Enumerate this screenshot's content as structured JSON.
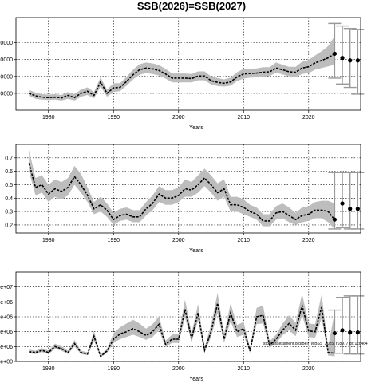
{
  "title": "SSB(2026)=SSB(2027)",
  "footnote": "stockassessment.org/Bell_WBSS_2025, r18977 git:1cc464",
  "colors": {
    "band": "#bdbdbd",
    "line": "#000000",
    "whisker": "#999999",
    "grid": "#000000"
  },
  "chart_data": [
    {
      "type": "line",
      "xlabel": "Years",
      "ylabel": "",
      "xlim": [
        1975,
        2028
      ],
      "ylim": [
        0,
        1100000
      ],
      "xticks": [
        1980,
        1990,
        2000,
        2010,
        2020
      ],
      "yticks": [
        {
          "value": 200000,
          "label": "0000"
        },
        {
          "value": 400000,
          "label": "0000"
        },
        {
          "value": 600000,
          "label": "0000"
        },
        {
          "value": 800000,
          "label": "0000"
        }
      ],
      "grid": true,
      "x": [
        1977,
        1978,
        1979,
        1980,
        1981,
        1982,
        1983,
        1984,
        1985,
        1986,
        1987,
        1988,
        1989,
        1990,
        1991,
        1992,
        1993,
        1994,
        1995,
        1996,
        1997,
        1998,
        1999,
        2000,
        2001,
        2002,
        2003,
        2004,
        2005,
        2006,
        2007,
        2008,
        2009,
        2010,
        2011,
        2012,
        2013,
        2014,
        2015,
        2016,
        2017,
        2018,
        2019,
        2020,
        2021,
        2022,
        2023,
        2024
      ],
      "estimate": [
        200000,
        170000,
        155000,
        150000,
        155000,
        145000,
        175000,
        150000,
        200000,
        225000,
        175000,
        335000,
        200000,
        265000,
        270000,
        340000,
        420000,
        480000,
        500000,
        490000,
        470000,
        430000,
        380000,
        380000,
        380000,
        375000,
        405000,
        405000,
        350000,
        330000,
        320000,
        335000,
        395000,
        430000,
        435000,
        440000,
        450000,
        455000,
        500000,
        480000,
        455000,
        450000,
        500000,
        515000,
        560000,
        590000,
        620000,
        670000
      ],
      "lower": [
        170000,
        135000,
        125000,
        120000,
        125000,
        115000,
        135000,
        115000,
        160000,
        180000,
        140000,
        280000,
        160000,
        215000,
        225000,
        290000,
        365000,
        420000,
        440000,
        430000,
        410000,
        375000,
        330000,
        330000,
        330000,
        330000,
        355000,
        355000,
        305000,
        285000,
        280000,
        290000,
        345000,
        375000,
        385000,
        390000,
        395000,
        405000,
        445000,
        425000,
        400000,
        390000,
        430000,
        440000,
        480000,
        500000,
        520000,
        540000
      ],
      "upper": [
        240000,
        210000,
        190000,
        185000,
        190000,
        180000,
        215000,
        190000,
        245000,
        270000,
        215000,
        390000,
        245000,
        320000,
        320000,
        395000,
        480000,
        545000,
        565000,
        555000,
        535000,
        490000,
        435000,
        435000,
        435000,
        430000,
        460000,
        460000,
        400000,
        380000,
        365000,
        385000,
        450000,
        490000,
        490000,
        495000,
        510000,
        510000,
        565000,
        540000,
        515000,
        515000,
        575000,
        595000,
        650000,
        700000,
        760000,
        880000
      ],
      "forecast": [
        {
          "x": 2024,
          "mid": 670000,
          "lo": 380000,
          "hi": 1030000
        },
        {
          "x": 2025,
          "mid": 620000,
          "lo": 310000,
          "hi": 1000000
        },
        {
          "x": 2026,
          "mid": 590000,
          "lo": 270000,
          "hi": 970000
        },
        {
          "x": 2027,
          "mid": 590000,
          "lo": 190000,
          "hi": 960000
        }
      ]
    },
    {
      "type": "line",
      "xlabel": "Years",
      "ylabel": "",
      "xlim": [
        1975,
        2028
      ],
      "ylim": [
        0.14,
        0.8
      ],
      "xticks": [
        1980,
        1990,
        2000,
        2010,
        2020
      ],
      "yticks": [
        {
          "value": 0.2,
          "label": "0.2"
        },
        {
          "value": 0.3,
          "label": "0.3"
        },
        {
          "value": 0.4,
          "label": "0.4"
        },
        {
          "value": 0.5,
          "label": "0.5"
        },
        {
          "value": 0.6,
          "label": "0.6"
        },
        {
          "value": 0.7,
          "label": "0.7"
        }
      ],
      "grid": true,
      "x": [
        1977,
        1978,
        1979,
        1980,
        1981,
        1982,
        1983,
        1984,
        1985,
        1986,
        1987,
        1988,
        1989,
        1990,
        1991,
        1992,
        1993,
        1994,
        1995,
        1996,
        1997,
        1998,
        1999,
        2000,
        2001,
        2002,
        2003,
        2004,
        2005,
        2006,
        2007,
        2008,
        2009,
        2010,
        2011,
        2012,
        2013,
        2014,
        2015,
        2016,
        2017,
        2018,
        2019,
        2020,
        2021,
        2022,
        2023,
        2024
      ],
      "estimate": [
        0.66,
        0.48,
        0.5,
        0.43,
        0.47,
        0.45,
        0.48,
        0.56,
        0.5,
        0.42,
        0.32,
        0.35,
        0.31,
        0.24,
        0.27,
        0.28,
        0.26,
        0.26,
        0.32,
        0.36,
        0.43,
        0.4,
        0.4,
        0.42,
        0.47,
        0.46,
        0.5,
        0.55,
        0.5,
        0.44,
        0.47,
        0.35,
        0.35,
        0.33,
        0.3,
        0.28,
        0.23,
        0.23,
        0.29,
        0.3,
        0.27,
        0.24,
        0.27,
        0.28,
        0.31,
        0.31,
        0.3,
        0.24
      ],
      "lower": [
        0.6,
        0.42,
        0.44,
        0.37,
        0.41,
        0.39,
        0.42,
        0.5,
        0.44,
        0.37,
        0.28,
        0.3,
        0.26,
        0.2,
        0.23,
        0.24,
        0.22,
        0.22,
        0.27,
        0.31,
        0.37,
        0.35,
        0.35,
        0.37,
        0.41,
        0.41,
        0.44,
        0.49,
        0.44,
        0.38,
        0.41,
        0.3,
        0.3,
        0.28,
        0.26,
        0.24,
        0.19,
        0.19,
        0.24,
        0.25,
        0.22,
        0.2,
        0.22,
        0.23,
        0.25,
        0.25,
        0.22,
        0.17
      ],
      "upper": [
        0.76,
        0.55,
        0.57,
        0.5,
        0.54,
        0.52,
        0.55,
        0.64,
        0.58,
        0.48,
        0.37,
        0.41,
        0.36,
        0.29,
        0.32,
        0.33,
        0.31,
        0.31,
        0.37,
        0.42,
        0.49,
        0.46,
        0.46,
        0.48,
        0.54,
        0.52,
        0.57,
        0.62,
        0.57,
        0.51,
        0.54,
        0.41,
        0.41,
        0.39,
        0.35,
        0.33,
        0.28,
        0.28,
        0.34,
        0.36,
        0.33,
        0.29,
        0.33,
        0.34,
        0.37,
        0.38,
        0.38,
        0.36
      ],
      "forecast": [
        {
          "x": 2024,
          "mid": 0.24,
          "lo": 0.17,
          "hi": 0.59
        },
        {
          "x": 2025,
          "mid": 0.36,
          "lo": 0.18,
          "hi": 0.59
        },
        {
          "x": 2026,
          "mid": 0.32,
          "lo": 0.17,
          "hi": 0.59
        },
        {
          "x": 2027,
          "mid": 0.32,
          "lo": 0.17,
          "hi": 0.59
        }
      ]
    },
    {
      "type": "line",
      "xlabel": "Years",
      "ylabel": "",
      "xlim": [
        1975,
        2028
      ],
      "ylim": [
        0,
        12000000
      ],
      "xticks": [
        1980,
        1990,
        2000,
        2010,
        2020
      ],
      "yticks": [
        {
          "value": 0,
          "label": "e+00"
        },
        {
          "value": 2000000,
          "label": "e+06"
        },
        {
          "value": 4000000,
          "label": "e+06"
        },
        {
          "value": 6000000,
          "label": "e+06"
        },
        {
          "value": 8000000,
          "label": "e+06"
        },
        {
          "value": 10000000,
          "label": "e+07"
        }
      ],
      "grid": true,
      "x": [
        1977,
        1978,
        1979,
        1980,
        1981,
        1982,
        1983,
        1984,
        1985,
        1986,
        1987,
        1988,
        1989,
        1990,
        1991,
        1992,
        1993,
        1994,
        1995,
        1996,
        1997,
        1998,
        1999,
        2000,
        2001,
        2002,
        2003,
        2004,
        2005,
        2006,
        2007,
        2008,
        2009,
        2010,
        2011,
        2012,
        2013,
        2014,
        2015,
        2016,
        2017,
        2018,
        2019,
        2020,
        2021,
        2022,
        2023,
        2024
      ],
      "estimate": [
        1300000,
        1200000,
        1500000,
        1200000,
        2000000,
        1700000,
        1200000,
        2400000,
        1200000,
        1000000,
        3400000,
        700000,
        1400000,
        3000000,
        3700000,
        4000000,
        4400000,
        4000000,
        3500000,
        4000000,
        5000000,
        2300000,
        3000000,
        3000000,
        7000000,
        3100000,
        6500000,
        1500000,
        4000000,
        7800000,
        3000000,
        6500000,
        4000000,
        4400000,
        1400000,
        6000000,
        6200000,
        2200000,
        3000000,
        4200000,
        5100000,
        4200000,
        7500000,
        4100000,
        4000000,
        7300000,
        1200000,
        1100000
      ],
      "lower": [
        1100000,
        1000000,
        1250000,
        1000000,
        1700000,
        1450000,
        1000000,
        2000000,
        1000000,
        850000,
        2800000,
        550000,
        1150000,
        2500000,
        3000000,
        3300000,
        3600000,
        3300000,
        2900000,
        3300000,
        4200000,
        1900000,
        2500000,
        2500000,
        5900000,
        2600000,
        5500000,
        1200000,
        3300000,
        6500000,
        2500000,
        5400000,
        3300000,
        3600000,
        1150000,
        5000000,
        5100000,
        1800000,
        2500000,
        3500000,
        4200000,
        3400000,
        6200000,
        3300000,
        3200000,
        5800000,
        800000,
        700000
      ],
      "upper": [
        1600000,
        1450000,
        1800000,
        1450000,
        2400000,
        2050000,
        1450000,
        2900000,
        1450000,
        1200000,
        4100000,
        900000,
        1700000,
        3800000,
        4600000,
        5100000,
        5600000,
        5100000,
        4400000,
        5000000,
        6100000,
        2800000,
        3600000,
        3700000,
        8300000,
        3800000,
        7700000,
        1900000,
        4900000,
        9200000,
        3700000,
        7800000,
        4900000,
        5300000,
        1750000,
        7200000,
        7500000,
        2700000,
        3600000,
        5100000,
        6200000,
        5200000,
        9100000,
        5100000,
        5000000,
        9000000,
        2000000,
        6600000
      ],
      "forecast": [
        {
          "x": 2024,
          "mid": 3800000,
          "lo": 1100000,
          "hi": 6900000
        },
        {
          "x": 2025,
          "mid": 4200000,
          "lo": 1100000,
          "hi": 8600000
        },
        {
          "x": 2026,
          "mid": 3900000,
          "lo": 1000000,
          "hi": 8800000
        },
        {
          "x": 2027,
          "mid": 3900000,
          "lo": 1000000,
          "hi": 8800000
        }
      ]
    }
  ]
}
